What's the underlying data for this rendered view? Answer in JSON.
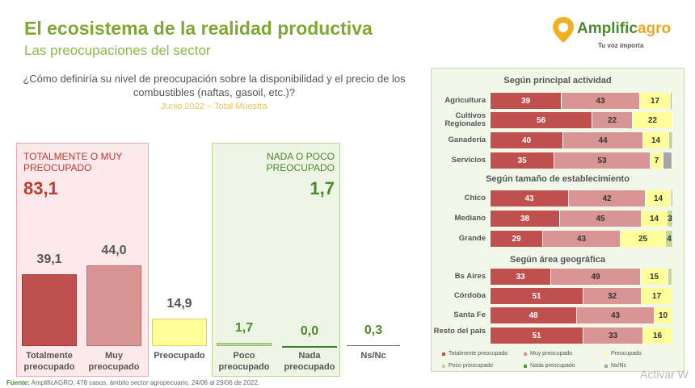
{
  "header": {
    "title": "El ecosistema de la realidad productiva",
    "subtitle": "Las preocupaciones del sector"
  },
  "logo": {
    "name_part1": "Amplific",
    "name_part2": "agro",
    "tagline": "Tu voz importa"
  },
  "question": {
    "text": "¿Cómo definiría su nivel de preocupación sobre la disponibilidad y el precio de los combustibles (naftas, gasoil, etc.)?",
    "date": "Junio 2022 – Total Muestra"
  },
  "groups": {
    "left_label": "TOTALMENTE O MUY PREOCUPADO",
    "left_value": "83,1",
    "right_label": "NADA O POCO PREOCUPADO",
    "right_value": "1,7"
  },
  "colors": {
    "totalmente": "#c0504d",
    "muy": "#d99594",
    "preocupado": "#ffff99",
    "poco": "#c4d79b",
    "nada": "#4f9a3b",
    "nsnc": "#a6a6a6"
  },
  "chart_data": [
    {
      "type": "bar",
      "title": "Total Muestra",
      "categories": [
        "Totalmente preocupado",
        "Muy preocupado",
        "Preocupado",
        "Poco preocupado",
        "Nada preocupado",
        "Ns/Nc"
      ],
      "values": [
        39.1,
        44.0,
        14.9,
        1.7,
        0.0,
        0.3
      ],
      "value_labels": [
        "39,1",
        "44,0",
        "14,9",
        "1,7",
        "0,0",
        "0,3"
      ],
      "xlabel": "",
      "ylabel": "",
      "ylim": [
        0,
        44
      ]
    },
    {
      "type": "bar",
      "orientation": "horizontal-stacked",
      "series_names": [
        "Totalmente preocupado",
        "Muy preocupado",
        "Preocupado",
        "Poco preocupado",
        "Nada preocupado",
        "Ns/Nc"
      ],
      "legend": [
        "Totalmente preocupado",
        "Muy preocupado",
        "Preocupado",
        "Poco preocupado",
        "Nada preocupado",
        "Ns/Nc"
      ],
      "sections": [
        {
          "title": "Según principal actividad",
          "rows": [
            {
              "label": "Agricultura",
              "values": [
                39,
                43,
                17,
                0,
                0,
                1
              ],
              "labels": [
                "39",
                "43",
                "17",
                "",
                "",
                ""
              ]
            },
            {
              "label": "Cultivos Regionales",
              "values": [
                56,
                22,
                22,
                0,
                0,
                0
              ],
              "labels": [
                "56",
                "22",
                "22",
                "",
                "",
                ""
              ]
            },
            {
              "label": "Ganadería",
              "values": [
                40,
                44,
                14,
                2,
                0,
                0
              ],
              "labels": [
                "40",
                "44",
                "14",
                "",
                "",
                ""
              ]
            },
            {
              "label": "Servicios",
              "values": [
                35,
                53,
                7,
                0,
                0,
                5
              ],
              "labels": [
                "35",
                "53",
                "7",
                "",
                "",
                ""
              ]
            }
          ]
        },
        {
          "title": "Según tamaño de establecimiento",
          "rows": [
            {
              "label": "Chico",
              "values": [
                43,
                42,
                14,
                0,
                0,
                1
              ],
              "labels": [
                "43",
                "42",
                "14",
                "",
                "",
                ""
              ]
            },
            {
              "label": "Mediano",
              "values": [
                38,
                45,
                14,
                3,
                0,
                0
              ],
              "labels": [
                "38",
                "45",
                "14",
                "3",
                "",
                ""
              ]
            },
            {
              "label": "Grande",
              "values": [
                29,
                43,
                25,
                4,
                0,
                0
              ],
              "labels": [
                "29",
                "43",
                "25",
                "4",
                "",
                ""
              ]
            }
          ]
        },
        {
          "title": "Según área geográfica",
          "rows": [
            {
              "label": "Bs Aires",
              "values": [
                33,
                49,
                15,
                2,
                0,
                0
              ],
              "labels": [
                "33",
                "49",
                "15",
                "",
                "",
                ""
              ]
            },
            {
              "label": "Córdoba",
              "values": [
                51,
                32,
                17,
                0,
                0,
                0
              ],
              "labels": [
                "51",
                "32",
                "17",
                "",
                "",
                ""
              ]
            },
            {
              "label": "Santa Fe",
              "values": [
                48,
                43,
                10,
                0,
                0,
                0
              ],
              "labels": [
                "48",
                "43",
                "10",
                "",
                "",
                ""
              ]
            },
            {
              "label": "Resto del país",
              "values": [
                51,
                33,
                16,
                0,
                0,
                0
              ],
              "labels": [
                "51",
                "33",
                "16",
                "",
                "",
                ""
              ]
            }
          ]
        }
      ]
    }
  ],
  "footer": {
    "source_label": "Fuente:",
    "source_text": " AmplificAGRO, 478 casos, ámbito sector agropecuario, 24/06 al 29/06 de 2022."
  },
  "watermark": "Activar W"
}
